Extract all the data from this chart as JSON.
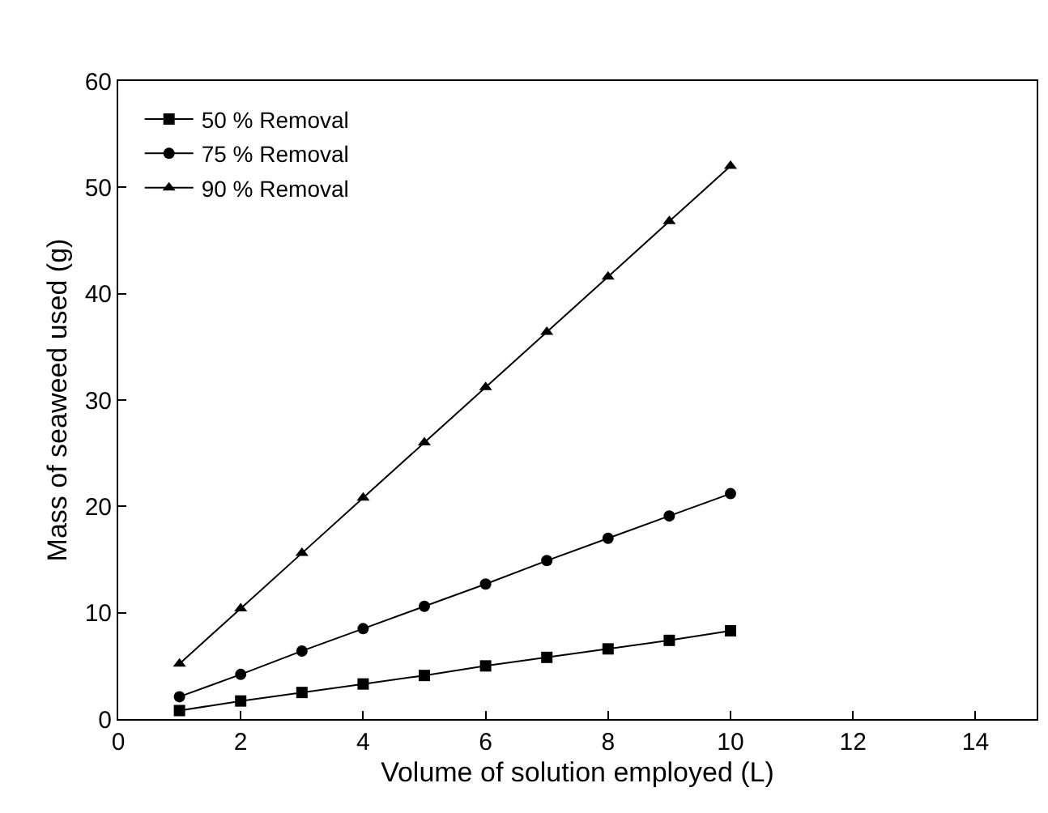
{
  "chart_data": {
    "type": "line",
    "xlabel": "Volume of solution employed (L)",
    "ylabel": "Mass of seaweed used (g)",
    "x": [
      1,
      2,
      3,
      4,
      5,
      6,
      7,
      8,
      9,
      10
    ],
    "series": [
      {
        "name": "50 % Removal",
        "color": "#000000",
        "marker": "square",
        "values": [
          0.8,
          1.7,
          2.5,
          3.3,
          4.1,
          5.0,
          5.8,
          6.6,
          7.4,
          8.3
        ]
      },
      {
        "name": "75 % Removal",
        "color": "#000000",
        "marker": "circle",
        "values": [
          2.1,
          4.2,
          6.4,
          8.5,
          10.6,
          12.7,
          14.9,
          17.0,
          19.1,
          21.2
        ]
      },
      {
        "name": "90 % Removal",
        "color": "#000000",
        "marker": "triangle",
        "values": [
          5.2,
          10.4,
          15.6,
          20.8,
          26.0,
          31.2,
          36.4,
          41.6,
          46.8,
          52.0
        ]
      }
    ],
    "xlim": [
      0,
      15
    ],
    "xticks": [
      0,
      2,
      4,
      6,
      8,
      10,
      12,
      14
    ],
    "ylim": [
      0,
      60
    ],
    "yticks": [
      0,
      10,
      20,
      30,
      40,
      50,
      60
    ],
    "grid": false,
    "legend": "top left",
    "line_style": "solid"
  }
}
